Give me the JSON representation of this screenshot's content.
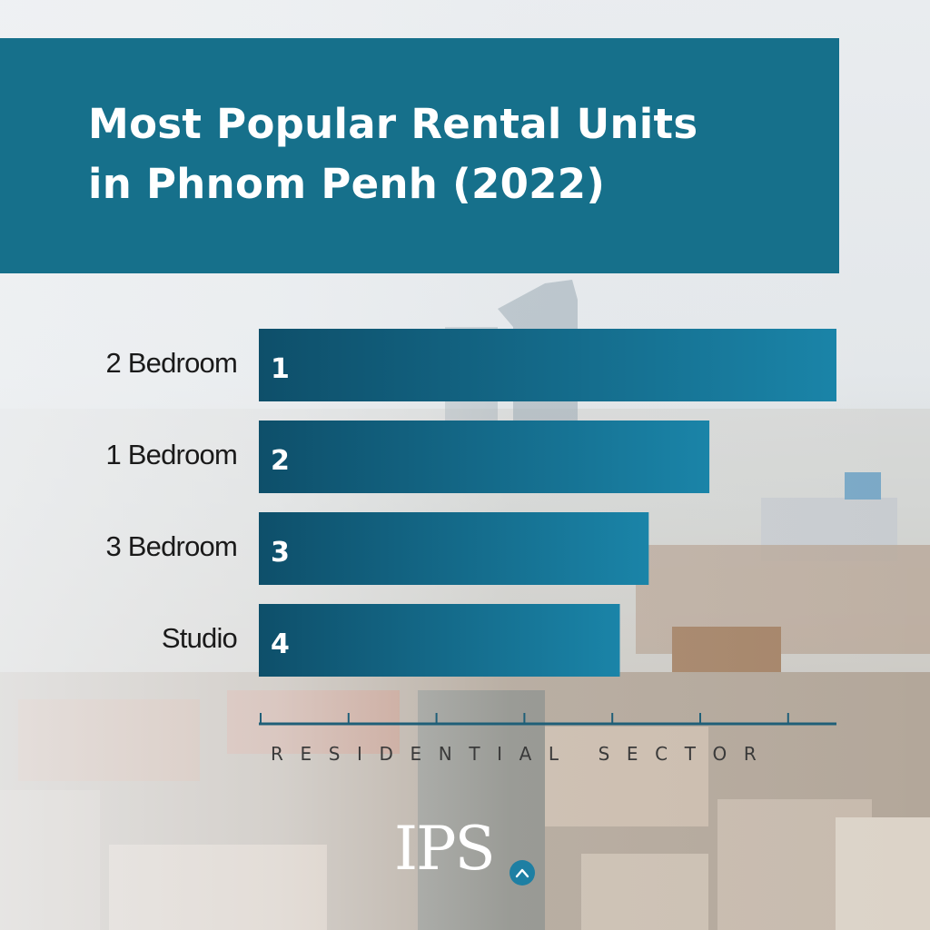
{
  "title": {
    "line1": "Most Popular Rental Units",
    "line2": "in Phnom Penh (2022)"
  },
  "colors": {
    "title_panel": "#16708b",
    "bar_dark": "#0e4f6a",
    "bar_light": "#1a84a8",
    "axis": "#1f5f78"
  },
  "chart_data": {
    "type": "bar",
    "orientation": "horizontal",
    "categories": [
      "2 Bedroom",
      "1 Bedroom",
      "3 Bedroom",
      "Studio"
    ],
    "values": [
      100,
      78,
      67.5,
      62.5
    ],
    "data_labels": [
      "1",
      "2",
      "3",
      "4"
    ],
    "xlabel": "RESIDENTIAL SECTOR",
    "ylabel": "",
    "xlim": [
      0,
      100
    ],
    "x_tick_count": 6,
    "grid": false,
    "legend": "none"
  },
  "logo": {
    "text": "IPS",
    "icon": "chevron-up-icon"
  }
}
